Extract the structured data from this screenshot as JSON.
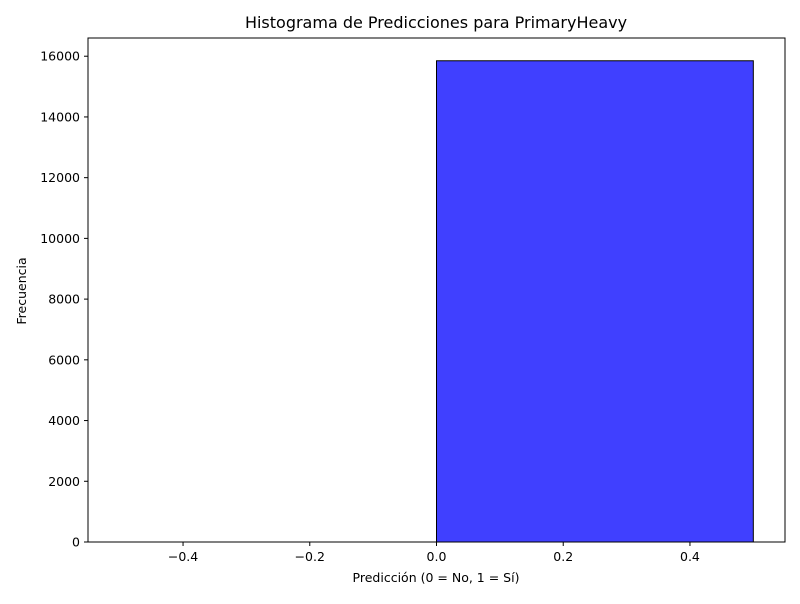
{
  "chart_data": {
    "type": "bar",
    "title": "Histograma de Predicciones para PrimaryHeavy",
    "xlabel": "Predicción (0 = No, 1 = Sí)",
    "ylabel": "Frecuencia",
    "xlim": [
      -0.55,
      0.55
    ],
    "ylim": [
      0,
      16600
    ],
    "xticks": [
      -0.4,
      -0.2,
      0.0,
      0.2,
      0.4
    ],
    "xtick_labels": [
      "−0.4",
      "−0.2",
      "0.0",
      "0.2",
      "0.4"
    ],
    "yticks": [
      0,
      2000,
      4000,
      6000,
      8000,
      10000,
      12000,
      14000,
      16000
    ],
    "ytick_labels": [
      "0",
      "2000",
      "4000",
      "6000",
      "8000",
      "10000",
      "12000",
      "14000",
      "16000"
    ],
    "bins": [
      {
        "x_start": -0.5,
        "x_end": 0.0,
        "value": 0
      },
      {
        "x_start": 0.0,
        "x_end": 0.5,
        "value": 15850
      }
    ],
    "bar_color": "#4040ff",
    "edge_color": "#000000",
    "grid": false,
    "legend": "none"
  }
}
